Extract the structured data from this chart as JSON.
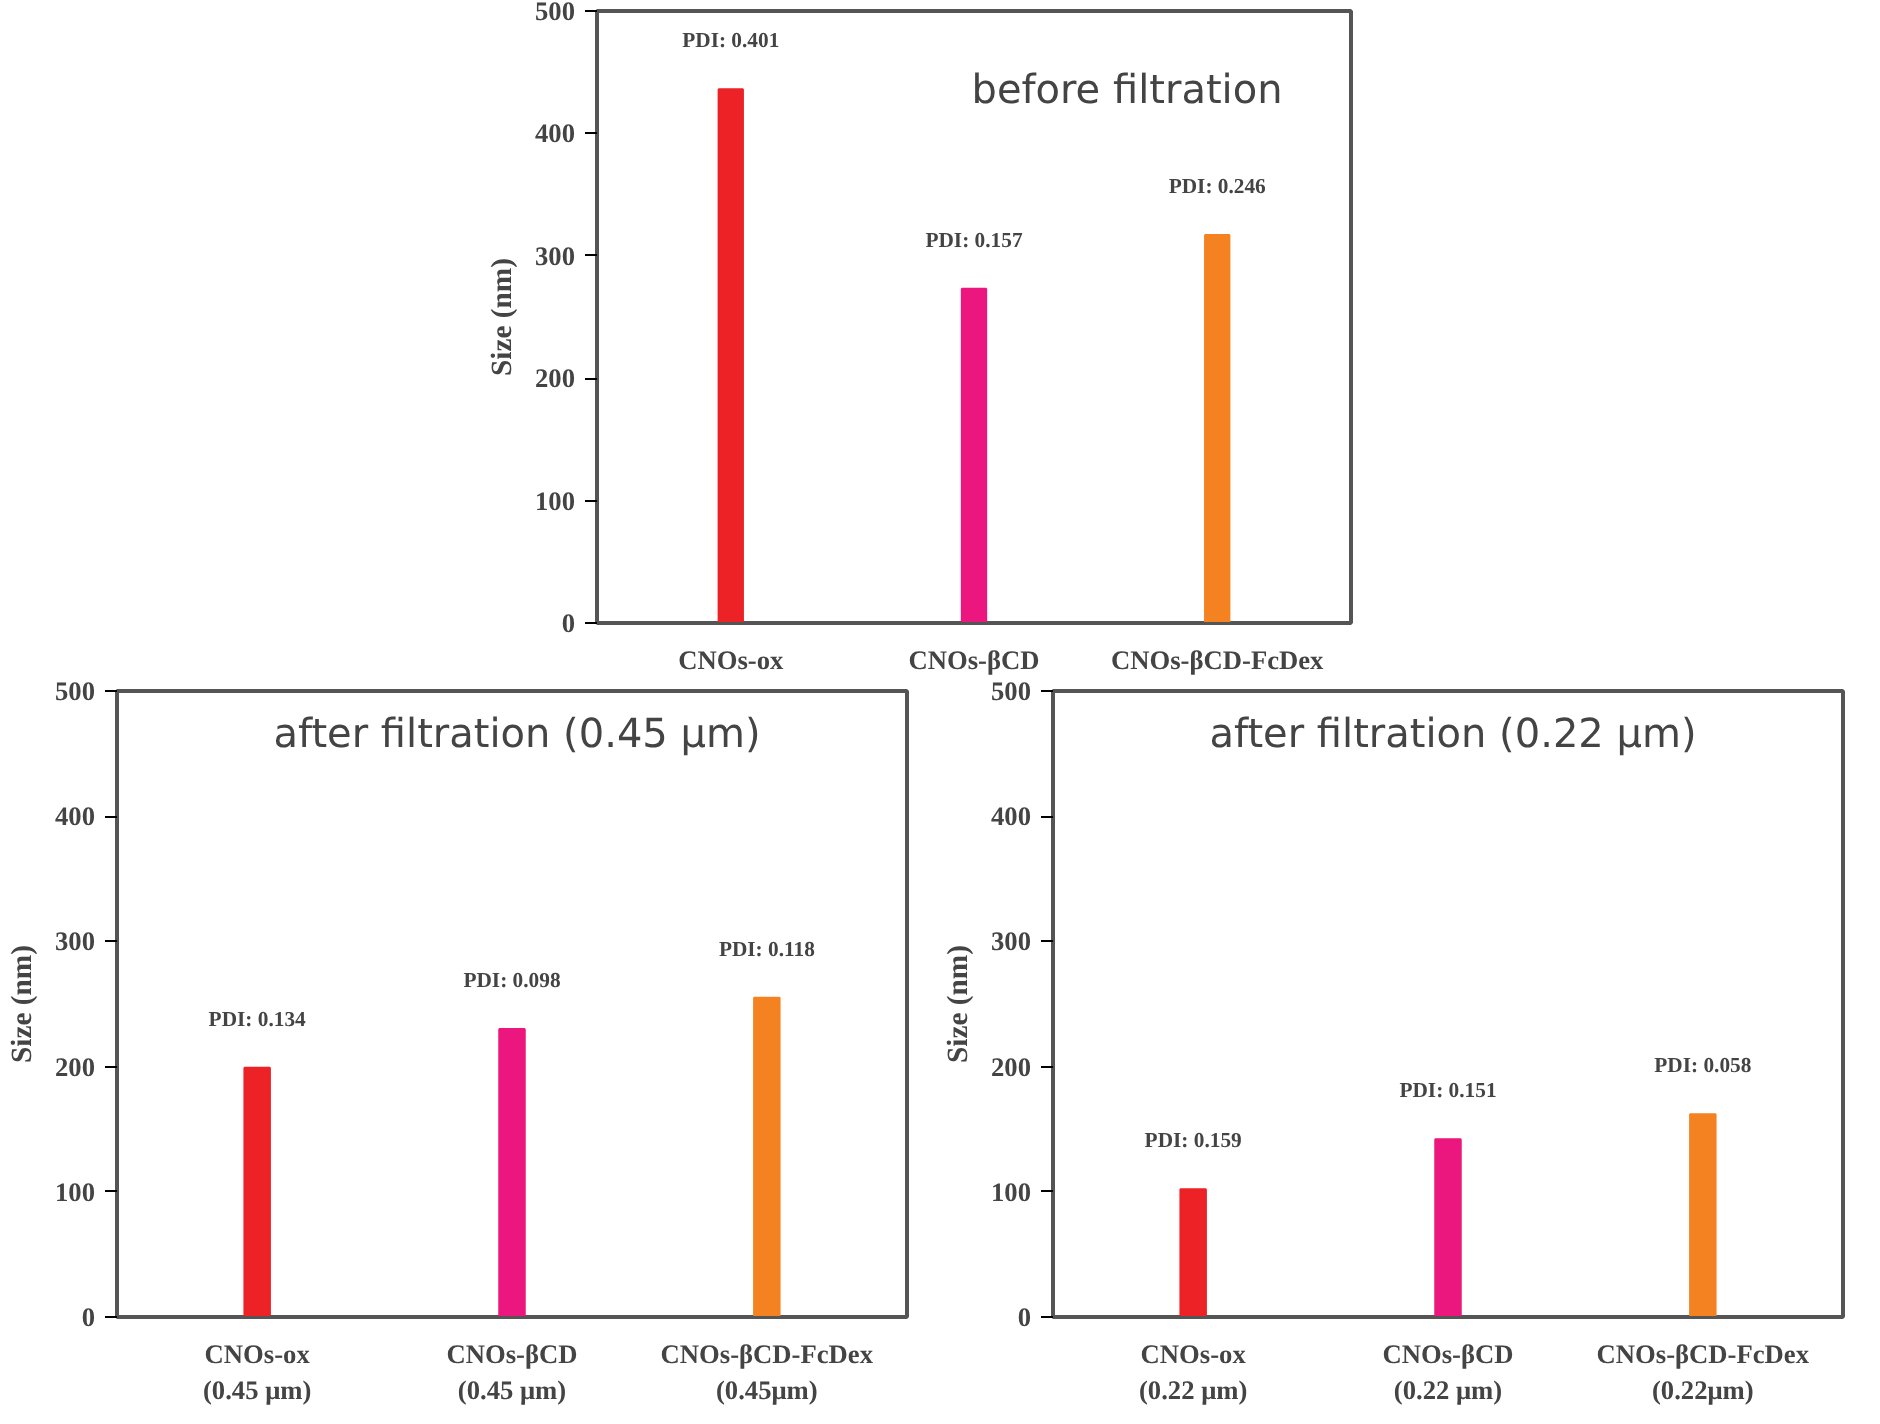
{
  "chart_data": [
    {
      "type": "bar",
      "title": "before filtration",
      "ylabel": "Size (nm)",
      "categories": [
        "CNOs-ox",
        "CNOs-βCD",
        "CNOs-βCD-FcDex"
      ],
      "colors": [
        "#ec2227",
        "#ec167f",
        "#f58220"
      ],
      "values": [
        436,
        273,
        317
      ],
      "ylim": [
        0,
        500
      ],
      "yticks": [
        0,
        100,
        200,
        300,
        400,
        500
      ],
      "grid": false,
      "annotations": [
        {
          "text": "PDI: 0.401",
          "x": "CNOs-ox",
          "y": 436
        },
        {
          "text": "PDI: 0.157",
          "x": "CNOs-βCD",
          "y": 273
        },
        {
          "text": "PDI: 0.246",
          "x": "CNOs-βCD-FcDex",
          "y": 317
        }
      ]
    },
    {
      "type": "bar",
      "title": "after filtration (0.45 μm)",
      "ylabel": "Size (nm)",
      "categories": [
        "CNOs-ox\n(0.45 μm)",
        "CNOs-βCD\n(0.45 μm)",
        "CNOs-βCD-FcDex\n(0.45μm)"
      ],
      "colors": [
        "#ec2227",
        "#ec167f",
        "#f58220"
      ],
      "values": [
        199,
        230,
        255
      ],
      "ylim": [
        0,
        500
      ],
      "yticks": [
        0,
        100,
        200,
        300,
        400,
        500
      ],
      "grid": false,
      "annotations": [
        {
          "text": "PDI: 0.134",
          "x": "CNOs-ox\n(0.45 μm)",
          "y": 199
        },
        {
          "text": "PDI: 0.098",
          "x": "CNOs-βCD\n(0.45 μm)",
          "y": 230
        },
        {
          "text": "PDI: 0.118",
          "x": "CNOs-βCD-FcDex\n(0.45μm)",
          "y": 255
        }
      ]
    },
    {
      "type": "bar",
      "title": "after filtration (0.22 μm)",
      "ylabel": "Size (nm)",
      "categories": [
        "CNOs-ox\n(0.22 μm)",
        "CNOs-βCD\n(0.22 μm)",
        "CNOs-βCD-FcDex\n(0.22μm)"
      ],
      "colors": [
        "#ec2227",
        "#ec167f",
        "#f58220"
      ],
      "values": [
        102,
        142,
        162
      ],
      "ylim": [
        0,
        500
      ],
      "yticks": [
        0,
        100,
        200,
        300,
        400,
        500
      ],
      "grid": false,
      "annotations": [
        {
          "text": "PDI: 0.159",
          "x": "CNOs-ox\n(0.22 μm)",
          "y": 102
        },
        {
          "text": "PDI: 0.151",
          "x": "CNOs-βCD\n(0.22 μm)",
          "y": 142
        },
        {
          "text": "PDI: 0.058",
          "x": "CNOs-βCD-FcDex\n(0.22μm)",
          "y": 162
        }
      ]
    }
  ]
}
